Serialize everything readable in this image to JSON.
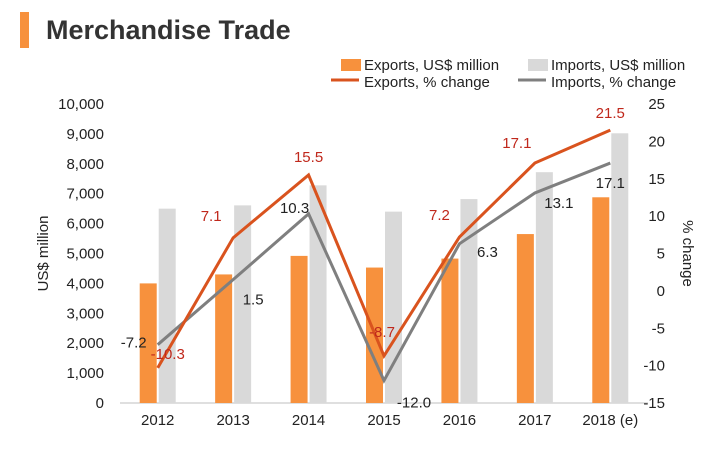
{
  "title": "Merchandise Trade",
  "colors": {
    "exports_bar": "#f7913d",
    "imports_bar": "#d9d9d9",
    "exports_line": "#d9531e",
    "imports_line": "#7f7f7f",
    "exports_label": "#c0281c",
    "title_accent": "#f7913d"
  },
  "legend": {
    "exports_bar": "Exports, US$ million",
    "imports_bar": "Imports, US$ million",
    "exports_line": "Exports, % change",
    "imports_line": "Imports, % change"
  },
  "chart_data": {
    "type": "bar",
    "title": "Merchandise Trade",
    "categories": [
      "2012",
      "2013",
      "2014",
      "2015",
      "2016",
      "2017",
      "2018 (e)"
    ],
    "ylabel": "US$ million",
    "y2label": "% change",
    "ylim": [
      0,
      10000
    ],
    "y2lim": [
      -15,
      25
    ],
    "yticks": [
      "0",
      "1,000",
      "2,000",
      "3,000",
      "4,000",
      "5,000",
      "6,000",
      "7,000",
      "8,000",
      "9,000",
      "10,000"
    ],
    "y2ticks": [
      "-15",
      "-10",
      "-5",
      "0",
      "5",
      "10",
      "15",
      "20",
      "25"
    ],
    "grid": false,
    "legend_position": "top",
    "series": [
      {
        "name": "Exports, US$ million",
        "type": "bar",
        "axis": "left",
        "values": [
          4000,
          4300,
          4920,
          4530,
          4830,
          5650,
          6880
        ]
      },
      {
        "name": "Imports, US$ million",
        "type": "bar",
        "axis": "left",
        "values": [
          6500,
          6610,
          7280,
          6400,
          6820,
          7720,
          9020
        ]
      },
      {
        "name": "Exports, % change",
        "type": "line",
        "axis": "right",
        "values": [
          -10.3,
          7.1,
          15.5,
          -8.7,
          7.2,
          17.1,
          21.5
        ],
        "labels": [
          "-10.3",
          "7.1",
          "15.5",
          "-8.7",
          "7.2",
          "17.1",
          "21.5"
        ]
      },
      {
        "name": "Imports, % change",
        "type": "line",
        "axis": "right",
        "values": [
          -7.2,
          1.5,
          10.3,
          -12.0,
          6.3,
          13.1,
          17.1
        ],
        "labels": [
          "-7.2",
          "1.5",
          "10.3",
          "-12.0",
          "6.3",
          "13.1",
          "17.1"
        ]
      }
    ]
  }
}
